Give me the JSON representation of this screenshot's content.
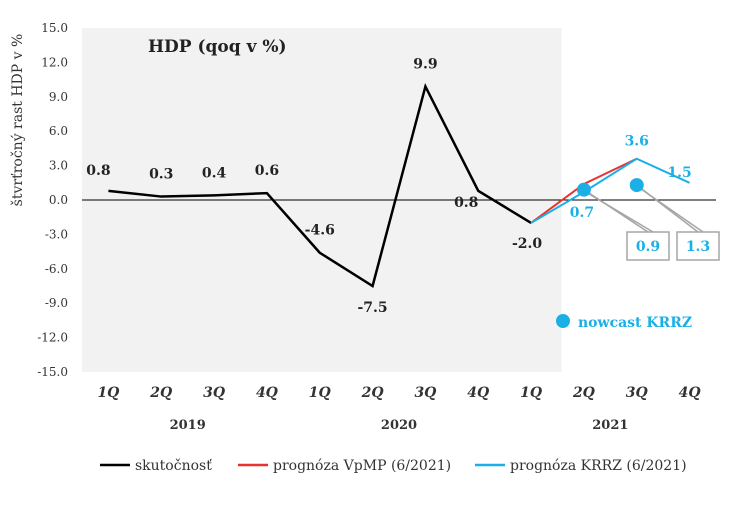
{
  "chart_data": {
    "type": "line",
    "title": "HDP (qoq v %)",
    "ylabel": "štvrťročný rast HDP v %",
    "xlabel": "",
    "ylim": [
      -15,
      15
    ],
    "y_ticks": [
      "15.0",
      "12.0",
      "9.0",
      "6.0",
      "3.0",
      "0.0",
      "-3.0",
      "-6.0",
      "-9.0",
      "-12.0",
      "-15.0"
    ],
    "categories": [
      "1Q",
      "2Q",
      "3Q",
      "4Q",
      "1Q",
      "2Q",
      "3Q",
      "4Q",
      "1Q",
      "2Q",
      "3Q",
      "4Q"
    ],
    "years": [
      "2019",
      "2020",
      "2021"
    ],
    "grid": false,
    "shaded_history": true,
    "series": [
      {
        "name": "skutočnosť",
        "color": "#000000",
        "values": [
          0.8,
          0.3,
          0.4,
          0.6,
          -4.6,
          -7.5,
          9.9,
          0.8,
          -2.0,
          null,
          null,
          null
        ],
        "labels": [
          "0.8",
          "0.3",
          "0.4",
          "0.6",
          "-4.6",
          "-7.5",
          "9.9",
          "0.8",
          "-2.0",
          "",
          "",
          ""
        ]
      },
      {
        "name": "prognóza VpMP (6/2021)",
        "color": "#e8322f",
        "values": [
          null,
          null,
          null,
          null,
          null,
          null,
          null,
          null,
          -2.0,
          1.4,
          3.6,
          null
        ]
      },
      {
        "name": "prognóza KRRZ (6/2021)",
        "color": "#1ab0e6",
        "values": [
          null,
          null,
          null,
          null,
          null,
          null,
          null,
          null,
          -2.0,
          0.7,
          3.6,
          1.5
        ],
        "labels": [
          "",
          "",
          "",
          "",
          "",
          "",
          "",
          "",
          "",
          "0.7",
          "3.6",
          "1.5"
        ]
      },
      {
        "name": "nowcast KRRZ",
        "color": "#1ab0e6",
        "type": "scatter",
        "points": [
          {
            "category_index": 9,
            "value": 0.9,
            "label": "0.9"
          },
          {
            "category_index": 10,
            "value": 1.3,
            "label": "1.3"
          }
        ]
      }
    ],
    "legend_position": "bottom"
  }
}
